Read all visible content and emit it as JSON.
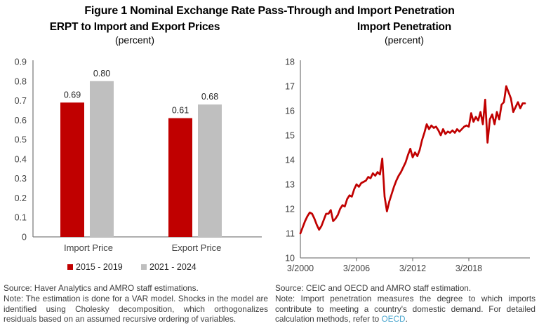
{
  "figure_title": "Figure 1 Nominal Exchange Rate Pass-Through and Import Penetration",
  "colors": {
    "series_red": "#C00000",
    "series_gray": "#BFBFBF",
    "axis_line": "#7F7F7F",
    "tick_text": "#404040",
    "link_blue": "#4BA7CF"
  },
  "chart_data": [
    {
      "type": "bar",
      "title": "ERPT to Import and Export Prices",
      "subtitle_unit": "(percent)",
      "categories": [
        "Import Price",
        "Export Price"
      ],
      "series": [
        {
          "name": "2015 - 2019",
          "color": "#C00000",
          "values": [
            0.69,
            0.61
          ]
        },
        {
          "name": "2021 - 2024",
          "color": "#BFBFBF",
          "values": [
            0.8,
            0.68
          ]
        }
      ],
      "data_labels": [
        [
          "0.69",
          "0.61"
        ],
        [
          "0.80",
          "0.68"
        ]
      ],
      "ylim": [
        0,
        0.9
      ],
      "ytick_step": 0.1,
      "ytick_labels": [
        "0",
        "0.1",
        "0.2",
        "0.3",
        "0.4",
        "0.5",
        "0.6",
        "0.7",
        "0.8",
        "0.9"
      ],
      "grid": false,
      "legend_position": "bottom"
    },
    {
      "type": "line",
      "title": "Import Penetration",
      "subtitle_unit": "(percent)",
      "x_start": "3/2000",
      "x_end": "3/2024",
      "x_frequency": "quarterly",
      "x_tick_labels": [
        "3/2000",
        "3/2006",
        "3/2012",
        "3/2018"
      ],
      "ylim": [
        10,
        18
      ],
      "ytick_step": 1,
      "ytick_labels": [
        "10",
        "11",
        "12",
        "13",
        "14",
        "15",
        "16",
        "17",
        "18"
      ],
      "grid": false,
      "legend_position": "none",
      "series": [
        {
          "name": "Import Penetration",
          "color": "#C00000",
          "values": [
            11.0,
            11.25,
            11.5,
            11.7,
            11.85,
            11.8,
            11.6,
            11.35,
            11.15,
            11.3,
            11.55,
            11.8,
            11.8,
            11.95,
            11.5,
            11.6,
            11.75,
            12.0,
            12.15,
            12.1,
            12.4,
            12.55,
            12.5,
            12.8,
            13.0,
            12.9,
            13.05,
            13.1,
            13.15,
            13.3,
            13.25,
            13.45,
            13.35,
            13.5,
            13.4,
            14.05,
            12.5,
            11.9,
            12.3,
            12.6,
            12.9,
            13.15,
            13.35,
            13.5,
            13.7,
            13.9,
            14.2,
            14.45,
            14.1,
            14.3,
            14.15,
            14.4,
            14.8,
            15.1,
            15.45,
            15.25,
            15.4,
            15.3,
            15.35,
            15.2,
            15.0,
            15.25,
            15.05,
            15.15,
            15.1,
            15.2,
            15.1,
            15.25,
            15.15,
            15.25,
            15.35,
            15.4,
            15.35,
            15.9,
            15.55,
            15.75,
            15.6,
            15.95,
            15.45,
            16.45,
            14.7,
            15.65,
            15.85,
            15.45,
            15.95,
            15.65,
            16.25,
            16.35,
            17.0,
            16.75,
            16.5,
            15.95,
            16.15,
            16.35,
            16.1,
            16.3,
            16.3
          ]
        }
      ]
    }
  ],
  "footnotes": {
    "left": {
      "source": "Source: Haver Analytics and AMRO staff estimations.",
      "note": "Note: The estimation is done for a VAR model. Shocks in the model are identified using Cholesky decomposition, which orthogonalizes residuals based on an assumed recursive ordering of variables."
    },
    "right": {
      "source": "Source: CEIC and OECD and AMRO staff estimation.",
      "note_before_link": "Note: Import penetration measures the degree to which imports contribute to meeting a country's domestic demand. For detailed calculation methods, refer to ",
      "link_text": "OECD",
      "note_after_link": "."
    }
  }
}
